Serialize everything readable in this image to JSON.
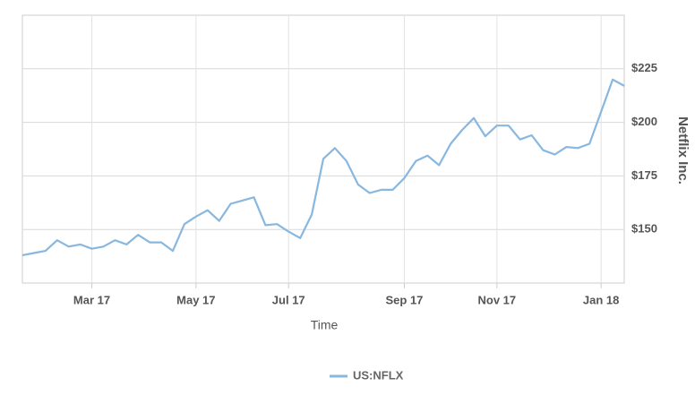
{
  "chart_data": {
    "type": "line",
    "categories": [
      null,
      null,
      null,
      null,
      null,
      null,
      "Mar 17",
      null,
      null,
      null,
      null,
      null,
      null,
      null,
      null,
      "May 17",
      null,
      null,
      null,
      null,
      null,
      null,
      null,
      "Jul 17",
      null,
      null,
      null,
      null,
      null,
      null,
      null,
      null,
      null,
      "Sep 17",
      null,
      null,
      null,
      null,
      null,
      null,
      null,
      "Nov 17",
      null,
      null,
      null,
      null,
      null,
      null,
      null,
      null,
      "Jan 18",
      null,
      null
    ],
    "series": [
      {
        "name": "US:NFLX",
        "color": "#88b7e0",
        "values": [
          138,
          139,
          140,
          145,
          142,
          143,
          141,
          142,
          145,
          143,
          147.5,
          144,
          144,
          140,
          152.5,
          156,
          159,
          154,
          162,
          163.5,
          165,
          152,
          152.5,
          149,
          146,
          157,
          183,
          188,
          182,
          171,
          167,
          168.5,
          168.5,
          174,
          182,
          184.5,
          180,
          190,
          196.5,
          202,
          193.5,
          198.5,
          198.5,
          192,
          194,
          187,
          185,
          188.5,
          188,
          190,
          205,
          220,
          217
        ]
      }
    ],
    "ylim": [
      125,
      250
    ],
    "yticks": [
      {
        "value": 150,
        "label": "$150"
      },
      {
        "value": 175,
        "label": "$175"
      },
      {
        "value": 200,
        "label": "$200"
      },
      {
        "value": 225,
        "label": "$225"
      }
    ],
    "xlabel": "Time",
    "ylabel": "Netflix Inc.",
    "grid": true
  }
}
